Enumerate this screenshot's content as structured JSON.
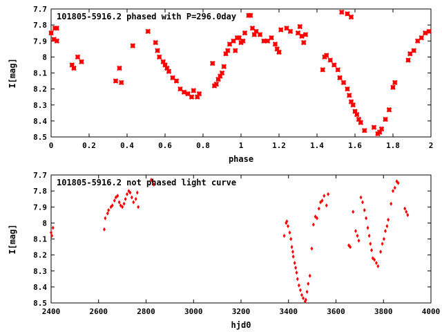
{
  "chart_data": [
    {
      "type": "scatter",
      "title": "101805-5916.2 phased with P=296.0day",
      "xlabel": "phase",
      "ylabel": "I[mag]",
      "xlim": [
        0,
        2
      ],
      "ylim": [
        8.5,
        7.7
      ],
      "y_inverted": true,
      "marker_style": "cross",
      "marker_color": "#ff0000",
      "x_ticks": [
        "0",
        "0.2",
        "0.4",
        "0.6",
        "0.8",
        "1",
        "1.2",
        "1.4",
        "1.6",
        "1.8",
        "2"
      ],
      "y_ticks": [
        "7.7",
        "7.8",
        "7.9",
        "8",
        "8.1",
        "8.2",
        "8.3",
        "8.4",
        "8.5"
      ],
      "points": [
        [
          0.0,
          7.85
        ],
        [
          0.015,
          7.89
        ],
        [
          0.02,
          7.82
        ],
        [
          0.03,
          7.82
        ],
        [
          0.03,
          7.9
        ],
        [
          0.11,
          8.05
        ],
        [
          0.12,
          8.07
        ],
        [
          0.14,
          8.0
        ],
        [
          0.16,
          8.03
        ],
        [
          0.34,
          8.15
        ],
        [
          0.36,
          8.07
        ],
        [
          0.37,
          8.16
        ],
        [
          0.43,
          7.93
        ],
        [
          0.51,
          7.84
        ],
        [
          0.55,
          7.91
        ],
        [
          0.56,
          7.96
        ],
        [
          0.57,
          8.0
        ],
        [
          0.59,
          8.03
        ],
        [
          0.6,
          8.05
        ],
        [
          0.61,
          8.07
        ],
        [
          0.62,
          8.09
        ],
        [
          0.64,
          8.13
        ],
        [
          0.66,
          8.15
        ],
        [
          0.68,
          8.2
        ],
        [
          0.7,
          8.22
        ],
        [
          0.72,
          8.23
        ],
        [
          0.74,
          8.25
        ],
        [
          0.75,
          8.21
        ],
        [
          0.77,
          8.25
        ],
        [
          0.78,
          8.23
        ],
        [
          0.85,
          8.04
        ],
        [
          0.86,
          8.18
        ],
        [
          0.87,
          8.17
        ],
        [
          0.88,
          8.14
        ],
        [
          0.89,
          8.12
        ],
        [
          0.9,
          8.1
        ],
        [
          0.91,
          8.06
        ],
        [
          0.92,
          7.98
        ],
        [
          0.93,
          7.96
        ],
        [
          0.94,
          7.92
        ],
        [
          0.96,
          7.9
        ],
        [
          0.97,
          7.96
        ],
        [
          0.98,
          7.88
        ],
        [
          0.99,
          7.88
        ],
        [
          1.0,
          7.91
        ],
        [
          1.01,
          7.9
        ],
        [
          1.02,
          7.85
        ],
        [
          1.04,
          7.74
        ],
        [
          1.05,
          7.74
        ],
        [
          1.06,
          7.82
        ],
        [
          1.07,
          7.86
        ],
        [
          1.08,
          7.84
        ],
        [
          1.1,
          7.86
        ],
        [
          1.12,
          7.9
        ],
        [
          1.14,
          7.9
        ],
        [
          1.16,
          7.88
        ],
        [
          1.18,
          7.92
        ],
        [
          1.19,
          7.95
        ],
        [
          1.2,
          7.97
        ],
        [
          1.21,
          7.83
        ],
        [
          1.24,
          7.82
        ],
        [
          1.26,
          7.84
        ],
        [
          1.3,
          7.85
        ],
        [
          1.31,
          7.81
        ],
        [
          1.32,
          7.87
        ],
        [
          1.33,
          7.91
        ],
        [
          1.34,
          7.86
        ],
        [
          1.43,
          8.08
        ],
        [
          1.44,
          8.0
        ],
        [
          1.45,
          7.99
        ],
        [
          1.47,
          8.02
        ],
        [
          1.49,
          8.05
        ],
        [
          1.51,
          8.08
        ],
        [
          1.52,
          8.13
        ],
        [
          1.53,
          7.72
        ],
        [
          1.54,
          8.16
        ],
        [
          1.56,
          8.2
        ],
        [
          1.57,
          8.24
        ],
        [
          1.58,
          8.28
        ],
        [
          1.59,
          8.3
        ],
        [
          1.6,
          8.34
        ],
        [
          1.61,
          8.36
        ],
        [
          1.62,
          8.39
        ],
        [
          1.63,
          8.41
        ],
        [
          1.65,
          8.46
        ],
        [
          1.56,
          7.73
        ],
        [
          1.58,
          7.75
        ],
        [
          1.7,
          8.44
        ],
        [
          1.72,
          8.48
        ],
        [
          1.73,
          8.47
        ],
        [
          1.74,
          8.45
        ],
        [
          1.76,
          8.39
        ],
        [
          1.78,
          8.33
        ],
        [
          1.8,
          8.19
        ],
        [
          1.81,
          8.16
        ],
        [
          1.88,
          8.02
        ],
        [
          1.89,
          7.98
        ],
        [
          1.91,
          7.96
        ],
        [
          1.93,
          7.9
        ],
        [
          1.95,
          7.88
        ],
        [
          1.97,
          7.85
        ],
        [
          1.99,
          7.84
        ]
      ]
    },
    {
      "type": "scatter",
      "title": "101805-5916.2 not phased light curve",
      "xlabel": "hjd0",
      "ylabel": "I[mag]",
      "xlim": [
        2400,
        4000
      ],
      "ylim": [
        8.5,
        7.7
      ],
      "y_inverted": true,
      "marker_style": "diamond",
      "marker_color": "#ff0000",
      "x_ticks": [
        "2400",
        "2600",
        "2800",
        "3000",
        "3200",
        "3400",
        "3600",
        "3800",
        "4000"
      ],
      "y_ticks": [
        "7.7",
        "7.8",
        "7.9",
        "8",
        "8.1",
        "8.2",
        "8.3",
        "8.4",
        "8.5"
      ],
      "points": [
        [
          2400,
          8.06
        ],
        [
          2403,
          8.08
        ],
        [
          2408,
          8.03
        ],
        [
          2624,
          8.04
        ],
        [
          2628,
          7.97
        ],
        [
          2638,
          7.94
        ],
        [
          2642,
          7.92
        ],
        [
          2652,
          7.9
        ],
        [
          2658,
          7.89
        ],
        [
          2667,
          7.86
        ],
        [
          2673,
          7.84
        ],
        [
          2680,
          7.83
        ],
        [
          2687,
          7.87
        ],
        [
          2693,
          7.89
        ],
        [
          2700,
          7.9
        ],
        [
          2707,
          7.88
        ],
        [
          2713,
          7.85
        ],
        [
          2720,
          7.82
        ],
        [
          2727,
          7.8
        ],
        [
          2733,
          7.81
        ],
        [
          2740,
          7.84
        ],
        [
          2747,
          7.87
        ],
        [
          2757,
          7.85
        ],
        [
          2763,
          7.81
        ],
        [
          2767,
          7.9
        ],
        [
          2822,
          7.73
        ],
        [
          2828,
          7.74
        ],
        [
          2833,
          7.76
        ],
        [
          3382,
          8.08
        ],
        [
          3390,
          8.0
        ],
        [
          3393,
          7.99
        ],
        [
          3398,
          8.02
        ],
        [
          3405,
          8.06
        ],
        [
          3410,
          8.1
        ],
        [
          3414,
          8.15
        ],
        [
          3418,
          8.18
        ],
        [
          3420,
          8.21
        ],
        [
          3426,
          8.25
        ],
        [
          3430,
          8.28
        ],
        [
          3434,
          8.31
        ],
        [
          3438,
          8.35
        ],
        [
          3444,
          8.39
        ],
        [
          3450,
          8.42
        ],
        [
          3456,
          8.45
        ],
        [
          3462,
          8.47
        ],
        [
          3470,
          8.49
        ],
        [
          3473,
          8.48
        ],
        [
          3478,
          8.43
        ],
        [
          3483,
          8.38
        ],
        [
          3490,
          8.33
        ],
        [
          3498,
          8.16
        ],
        [
          3505,
          8.01
        ],
        [
          3513,
          7.96
        ],
        [
          3520,
          7.97
        ],
        [
          3528,
          7.91
        ],
        [
          3535,
          7.87
        ],
        [
          3542,
          7.86
        ],
        [
          3550,
          7.83
        ],
        [
          3560,
          7.89
        ],
        [
          3567,
          7.82
        ],
        [
          3654,
          8.14
        ],
        [
          3660,
          8.15
        ],
        [
          3672,
          7.93
        ],
        [
          3683,
          8.05
        ],
        [
          3690,
          8.08
        ],
        [
          3696,
          8.11
        ],
        [
          3705,
          7.84
        ],
        [
          3712,
          7.87
        ],
        [
          3720,
          7.92
        ],
        [
          3727,
          7.97
        ],
        [
          3734,
          8.03
        ],
        [
          3740,
          8.08
        ],
        [
          3745,
          8.13
        ],
        [
          3750,
          8.17
        ],
        [
          3755,
          8.22
        ],
        [
          3762,
          8.23
        ],
        [
          3770,
          8.25
        ],
        [
          3777,
          8.27
        ],
        [
          3788,
          8.18
        ],
        [
          3795,
          8.13
        ],
        [
          3802,
          8.1
        ],
        [
          3808,
          8.05
        ],
        [
          3815,
          8.02
        ],
        [
          3820,
          7.98
        ],
        [
          3832,
          7.88
        ],
        [
          3840,
          7.8
        ],
        [
          3848,
          7.78
        ],
        [
          3856,
          7.74
        ],
        [
          3862,
          7.75
        ],
        [
          3890,
          7.91
        ],
        [
          3896,
          7.93
        ],
        [
          3902,
          7.95
        ]
      ]
    }
  ]
}
